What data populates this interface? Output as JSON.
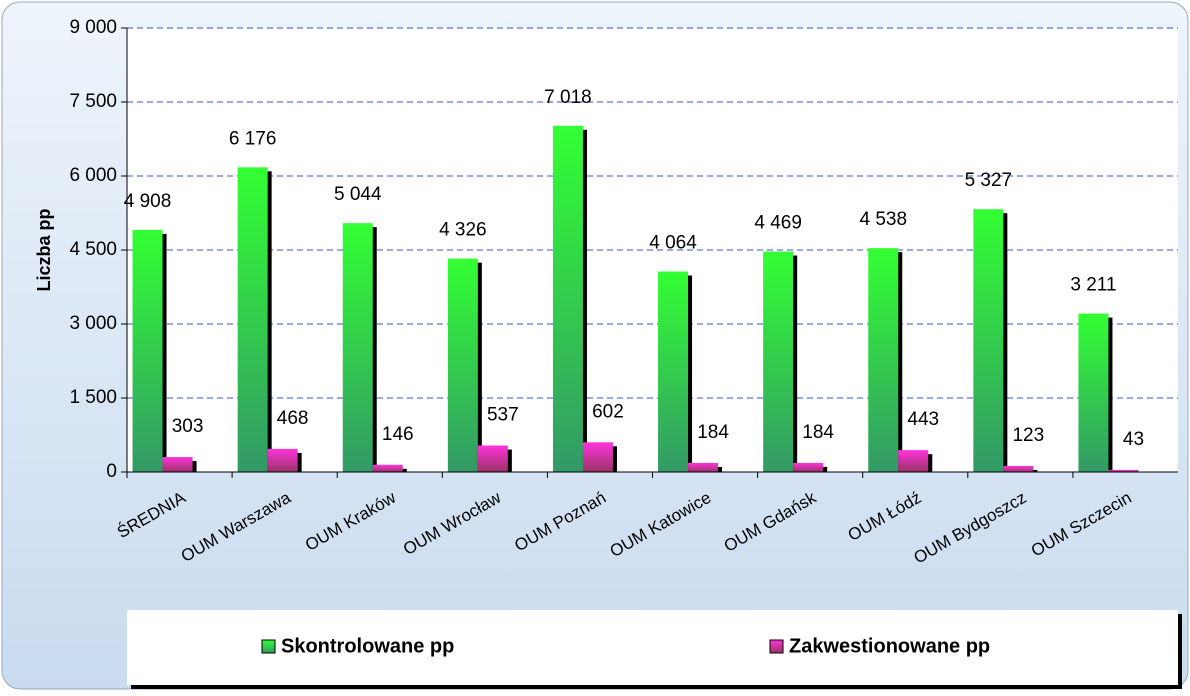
{
  "chart_data": {
    "type": "bar",
    "y_label": "Liczba pp",
    "categories": [
      "ŚREDNIA",
      "OUM Warszawa",
      "OUM Kraków",
      "OUM Wrocław",
      "OUM Poznań",
      "OUM Katowice",
      "OUM Gdańsk",
      "OUM Łódź",
      "OUM Bydgoszcz",
      "OUM Szczecin"
    ],
    "series": [
      {
        "name": "Skontrolowane pp",
        "color": "#22dd33",
        "values": [
          4908,
          6176,
          5044,
          4326,
          7018,
          4064,
          4469,
          4538,
          5327,
          3211
        ],
        "value_labels": [
          "4 908",
          "6 176",
          "5 044",
          "4 326",
          "7 018",
          "4 064",
          "4 469",
          "4 538",
          "5 327",
          "3 211"
        ]
      },
      {
        "name": "Zakwestionowane pp",
        "color": "#dd22aa",
        "values": [
          303,
          468,
          146,
          537,
          602,
          184,
          184,
          443,
          123,
          43
        ]
      }
    ],
    "ylim": [
      0,
      9000
    ],
    "yticks": [
      0,
      {
        "value": 1500,
        "label": "1 500"
      },
      {
        "value": 3000,
        "label": "3 000"
      },
      {
        "value": 4500,
        "label": "4 500"
      },
      {
        "value": 6000,
        "label": "6 000"
      },
      {
        "value": 7500,
        "label": "7 500"
      },
      {
        "value": 9000,
        "label": "9 000"
      }
    ],
    "grid": true
  }
}
